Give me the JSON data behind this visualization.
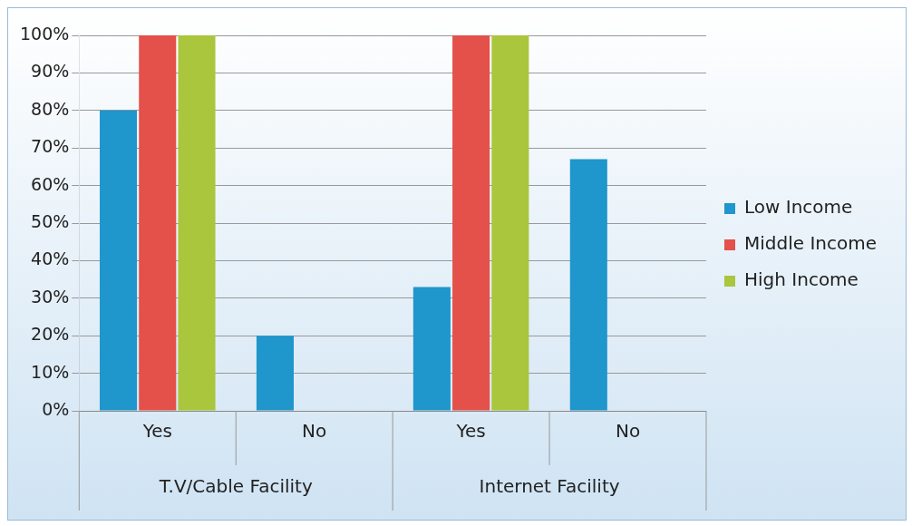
{
  "chart_data": {
    "type": "bar",
    "categories": [
      "Yes",
      "No",
      "Yes",
      "No"
    ],
    "series": [
      {
        "name": "Low Income",
        "color": "#1f96cc",
        "values": [
          80,
          20,
          33,
          67
        ]
      },
      {
        "name": "Middle Income",
        "color": "#e4504a",
        "values": [
          100,
          0,
          100,
          0
        ]
      },
      {
        "name": "High Income",
        "color": "#a9c63c",
        "values": [
          100,
          0,
          100,
          0
        ]
      }
    ],
    "ylim": [
      0,
      100
    ],
    "yticks": [
      {
        "value": 0,
        "label": "0%"
      },
      {
        "value": 10,
        "label": "10%"
      },
      {
        "value": 20,
        "label": "20%"
      },
      {
        "value": 30,
        "label": "30%"
      },
      {
        "value": 40,
        "label": "40%"
      },
      {
        "value": 50,
        "label": "50%"
      },
      {
        "value": 60,
        "label": "60%"
      },
      {
        "value": 70,
        "label": "70%"
      },
      {
        "value": 80,
        "label": "80%"
      },
      {
        "value": 90,
        "label": "90%"
      },
      {
        "value": 100,
        "label": "100%"
      }
    ],
    "annotations": [
      "T.V/Cable Facility",
      "Internet Facility"
    ],
    "grid": "y",
    "legend": "right"
  }
}
